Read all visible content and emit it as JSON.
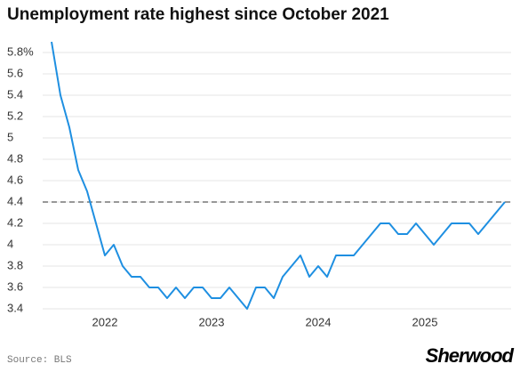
{
  "chart_data": {
    "type": "line",
    "title": "Unemployment rate highest since October 2021",
    "source": "Source: BLS",
    "brand": "Sherwood",
    "categories": [
      null,
      null,
      null,
      null,
      null,
      null,
      "2022",
      null,
      null,
      null,
      null,
      null,
      null,
      null,
      null,
      null,
      null,
      null,
      "2023",
      null,
      null,
      null,
      null,
      null,
      null,
      null,
      null,
      null,
      null,
      null,
      "2024",
      null,
      null,
      null,
      null,
      null,
      null,
      null,
      null,
      null,
      null,
      null,
      "2025",
      null,
      null,
      null,
      null,
      null,
      null,
      null,
      null,
      null
    ],
    "values": [
      5.9,
      5.4,
      5.1,
      4.7,
      4.5,
      4.2,
      3.9,
      4.0,
      3.8,
      3.7,
      3.7,
      3.6,
      3.6,
      3.5,
      3.6,
      3.5,
      3.6,
      3.6,
      3.5,
      3.5,
      3.6,
      3.5,
      3.4,
      3.6,
      3.6,
      3.5,
      3.7,
      3.8,
      3.9,
      3.7,
      3.8,
      3.7,
      3.9,
      3.9,
      3.9,
      4.0,
      4.1,
      4.2,
      4.2,
      4.1,
      4.1,
      4.2,
      4.1,
      4.0,
      4.1,
      4.2,
      4.2,
      4.2,
      4.1,
      4.2,
      4.3,
      4.4
    ],
    "color": "#1e8fe1",
    "reference_line": 4.4,
    "reference_color": "#777777",
    "ylim": [
      3.35,
      5.95
    ],
    "yticks": [
      3.4,
      3.6,
      3.8,
      4,
      4.2,
      4.4,
      4.6,
      4.8,
      5,
      5.2,
      5.4,
      5.6,
      {
        "value": 5.8,
        "label": "5.8%"
      }
    ],
    "grid": true
  }
}
